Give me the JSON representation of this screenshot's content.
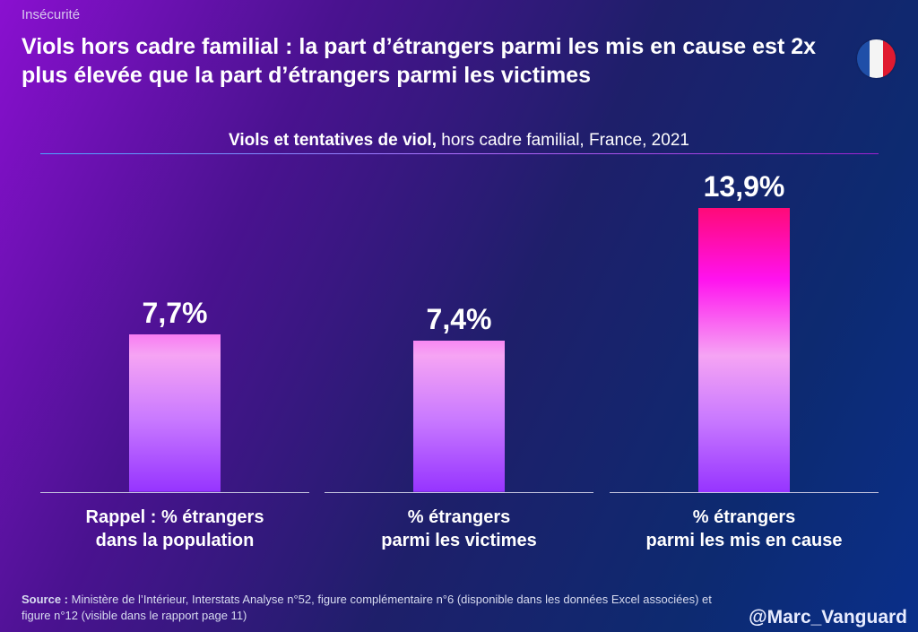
{
  "header": {
    "category": "Insécurité",
    "title": "Viols hors cadre familial : la part d’étrangers parmi les mis en cause est 2x plus élevée que la part d’étrangers parmi les victimes"
  },
  "flag_colors": [
    "#1f4fa8",
    "#f4f4f4",
    "#e01a30"
  ],
  "chart_data": {
    "type": "bar",
    "title_bold": "Viols et tentatives de viol,",
    "title_rest": " hors cadre familial, France, 2021",
    "categories": [
      "Rappel : % étrangers dans la population",
      "% étrangers parmi les victimes",
      "% étrangers parmi les mis en cause"
    ],
    "values": [
      7.7,
      7.4,
      13.9
    ],
    "value_labels": [
      "7,7%",
      "7,4%",
      "13,9%"
    ],
    "ylim": [
      0,
      13.9
    ],
    "grid": false
  },
  "footer": {
    "source_label": "Source :",
    "source_text": " Ministère de l’Intérieur, Interstats Analyse n°52, figure complémentaire n°6 (disponible dans les données Excel associées) et figure n°12 (visible dans le rapport page 11)",
    "handle": "@Marc_Vanguard"
  }
}
